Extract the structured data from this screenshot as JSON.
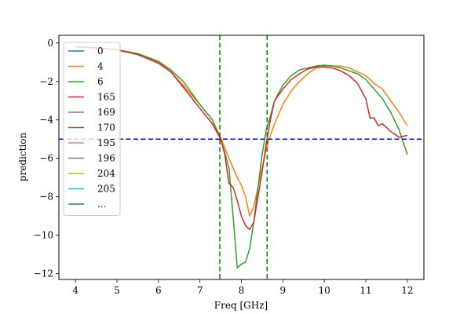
{
  "chart_data": {
    "type": "line",
    "title": "",
    "xlabel": "Freq [GHz]",
    "ylabel": "prediction",
    "xlim": [
      3.6,
      12.4
    ],
    "ylim": [
      -12.3,
      0.4
    ],
    "xticks": [
      4,
      5,
      6,
      7,
      8,
      9,
      10,
      11,
      12
    ],
    "yticks": [
      0,
      -2,
      -4,
      -6,
      -8,
      -10,
      -12
    ],
    "xtick_labels": [
      "4",
      "5",
      "6",
      "7",
      "8",
      "9",
      "10",
      "11",
      "12"
    ],
    "ytick_labels": [
      "0",
      "−2",
      "−4",
      "−6",
      "−8",
      "−10",
      "−12"
    ],
    "grid": false,
    "legend_position": "top-left",
    "legend": [
      {
        "label": "0",
        "color": "#1f77b4"
      },
      {
        "label": "4",
        "color": "#ff7f0e"
      },
      {
        "label": "6",
        "color": "#2ca02c"
      },
      {
        "label": "165",
        "color": "#d62728"
      },
      {
        "label": "169",
        "color": "#9467bd"
      },
      {
        "label": "170",
        "color": "#8c564b"
      },
      {
        "label": "195",
        "color": "#e377c2"
      },
      {
        "label": "196",
        "color": "#7f7f7f"
      },
      {
        "label": "204",
        "color": "#bcbd22"
      },
      {
        "label": "205",
        "color": "#17becf"
      },
      {
        "label": "...",
        "color": "#1f77b4"
      }
    ],
    "reference_lines": [
      {
        "orientation": "horizontal",
        "value": -5,
        "color": "#0000ff",
        "style": "dashed"
      },
      {
        "orientation": "vertical",
        "value": 7.48,
        "color": "#008000",
        "style": "dashed"
      },
      {
        "orientation": "vertical",
        "value": 8.62,
        "color": "#008000",
        "style": "dashed"
      }
    ],
    "series": [
      {
        "name": "4",
        "color": "#ff7f0e",
        "x": [
          4.0,
          4.5,
          5.0,
          5.5,
          6.0,
          6.3,
          6.6,
          7.0,
          7.3,
          7.5,
          7.7,
          7.9,
          8.0,
          8.1,
          8.2,
          8.3,
          8.4,
          8.5,
          8.6,
          8.7,
          8.8,
          9.0,
          9.2,
          9.4,
          9.6,
          9.8,
          10.0,
          10.2,
          10.4,
          10.6,
          10.8,
          11.0,
          11.2,
          11.4,
          11.6,
          11.8,
          12.0
        ],
        "y": [
          -0.2,
          -0.25,
          -0.35,
          -0.6,
          -1.0,
          -1.5,
          -2.2,
          -3.2,
          -4.0,
          -4.9,
          -6.0,
          -7.0,
          -7.4,
          -8.0,
          -9.0,
          -8.5,
          -7.5,
          -6.5,
          -5.5,
          -4.8,
          -4.2,
          -3.2,
          -2.5,
          -2.0,
          -1.6,
          -1.3,
          -1.2,
          -1.2,
          -1.2,
          -1.3,
          -1.5,
          -1.7,
          -2.1,
          -2.4,
          -3.0,
          -3.6,
          -4.3
        ]
      },
      {
        "name": "6",
        "color": "#2ca02c",
        "x": [
          4.0,
          4.5,
          5.0,
          5.5,
          6.0,
          6.3,
          6.6,
          7.0,
          7.3,
          7.5,
          7.6,
          7.7,
          7.8,
          7.9,
          8.0,
          8.1,
          8.2,
          8.3,
          8.4,
          8.5,
          8.6,
          8.7,
          8.8,
          9.0,
          9.2,
          9.4,
          9.6,
          9.8,
          10.0,
          10.2,
          10.4,
          10.6,
          10.8,
          11.0,
          11.2,
          11.4,
          11.6,
          11.8,
          12.0
        ],
        "y": [
          -0.2,
          -0.25,
          -0.35,
          -0.55,
          -0.95,
          -1.4,
          -2.0,
          -3.2,
          -4.0,
          -5.0,
          -5.7,
          -6.5,
          -9.0,
          -11.7,
          -11.5,
          -11.4,
          -10.7,
          -9.3,
          -7.5,
          -5.8,
          -4.5,
          -3.8,
          -3.0,
          -2.2,
          -1.7,
          -1.4,
          -1.3,
          -1.2,
          -1.15,
          -1.2,
          -1.3,
          -1.45,
          -1.6,
          -1.9,
          -2.4,
          -2.9,
          -3.6,
          -4.5,
          -5.8
        ]
      },
      {
        "name": "165",
        "color": "#d62728",
        "x": [
          4.0,
          4.5,
          5.0,
          5.5,
          6.0,
          6.3,
          6.6,
          7.0,
          7.3,
          7.5,
          7.6,
          7.7,
          7.8,
          7.9,
          8.0,
          8.1,
          8.2,
          8.3,
          8.4,
          8.5,
          8.6,
          8.7,
          8.8,
          9.0,
          9.2,
          9.4,
          9.6,
          9.8,
          10.0,
          10.2,
          10.4,
          10.6,
          10.8,
          11.0,
          11.1,
          11.2,
          11.3,
          11.4,
          11.6,
          11.8,
          12.0
        ],
        "y": [
          -0.2,
          -0.25,
          -0.35,
          -0.6,
          -1.05,
          -1.5,
          -2.3,
          -3.4,
          -4.2,
          -5.0,
          -5.8,
          -7.3,
          -7.5,
          -8.2,
          -9.0,
          -9.5,
          -9.7,
          -9.3,
          -8.0,
          -6.7,
          -5.2,
          -4.0,
          -3.0,
          -2.4,
          -1.9,
          -1.6,
          -1.35,
          -1.25,
          -1.25,
          -1.3,
          -1.45,
          -1.7,
          -2.1,
          -2.9,
          -3.9,
          -3.9,
          -4.3,
          -4.2,
          -4.6,
          -4.9,
          -4.8
        ]
      }
    ]
  }
}
